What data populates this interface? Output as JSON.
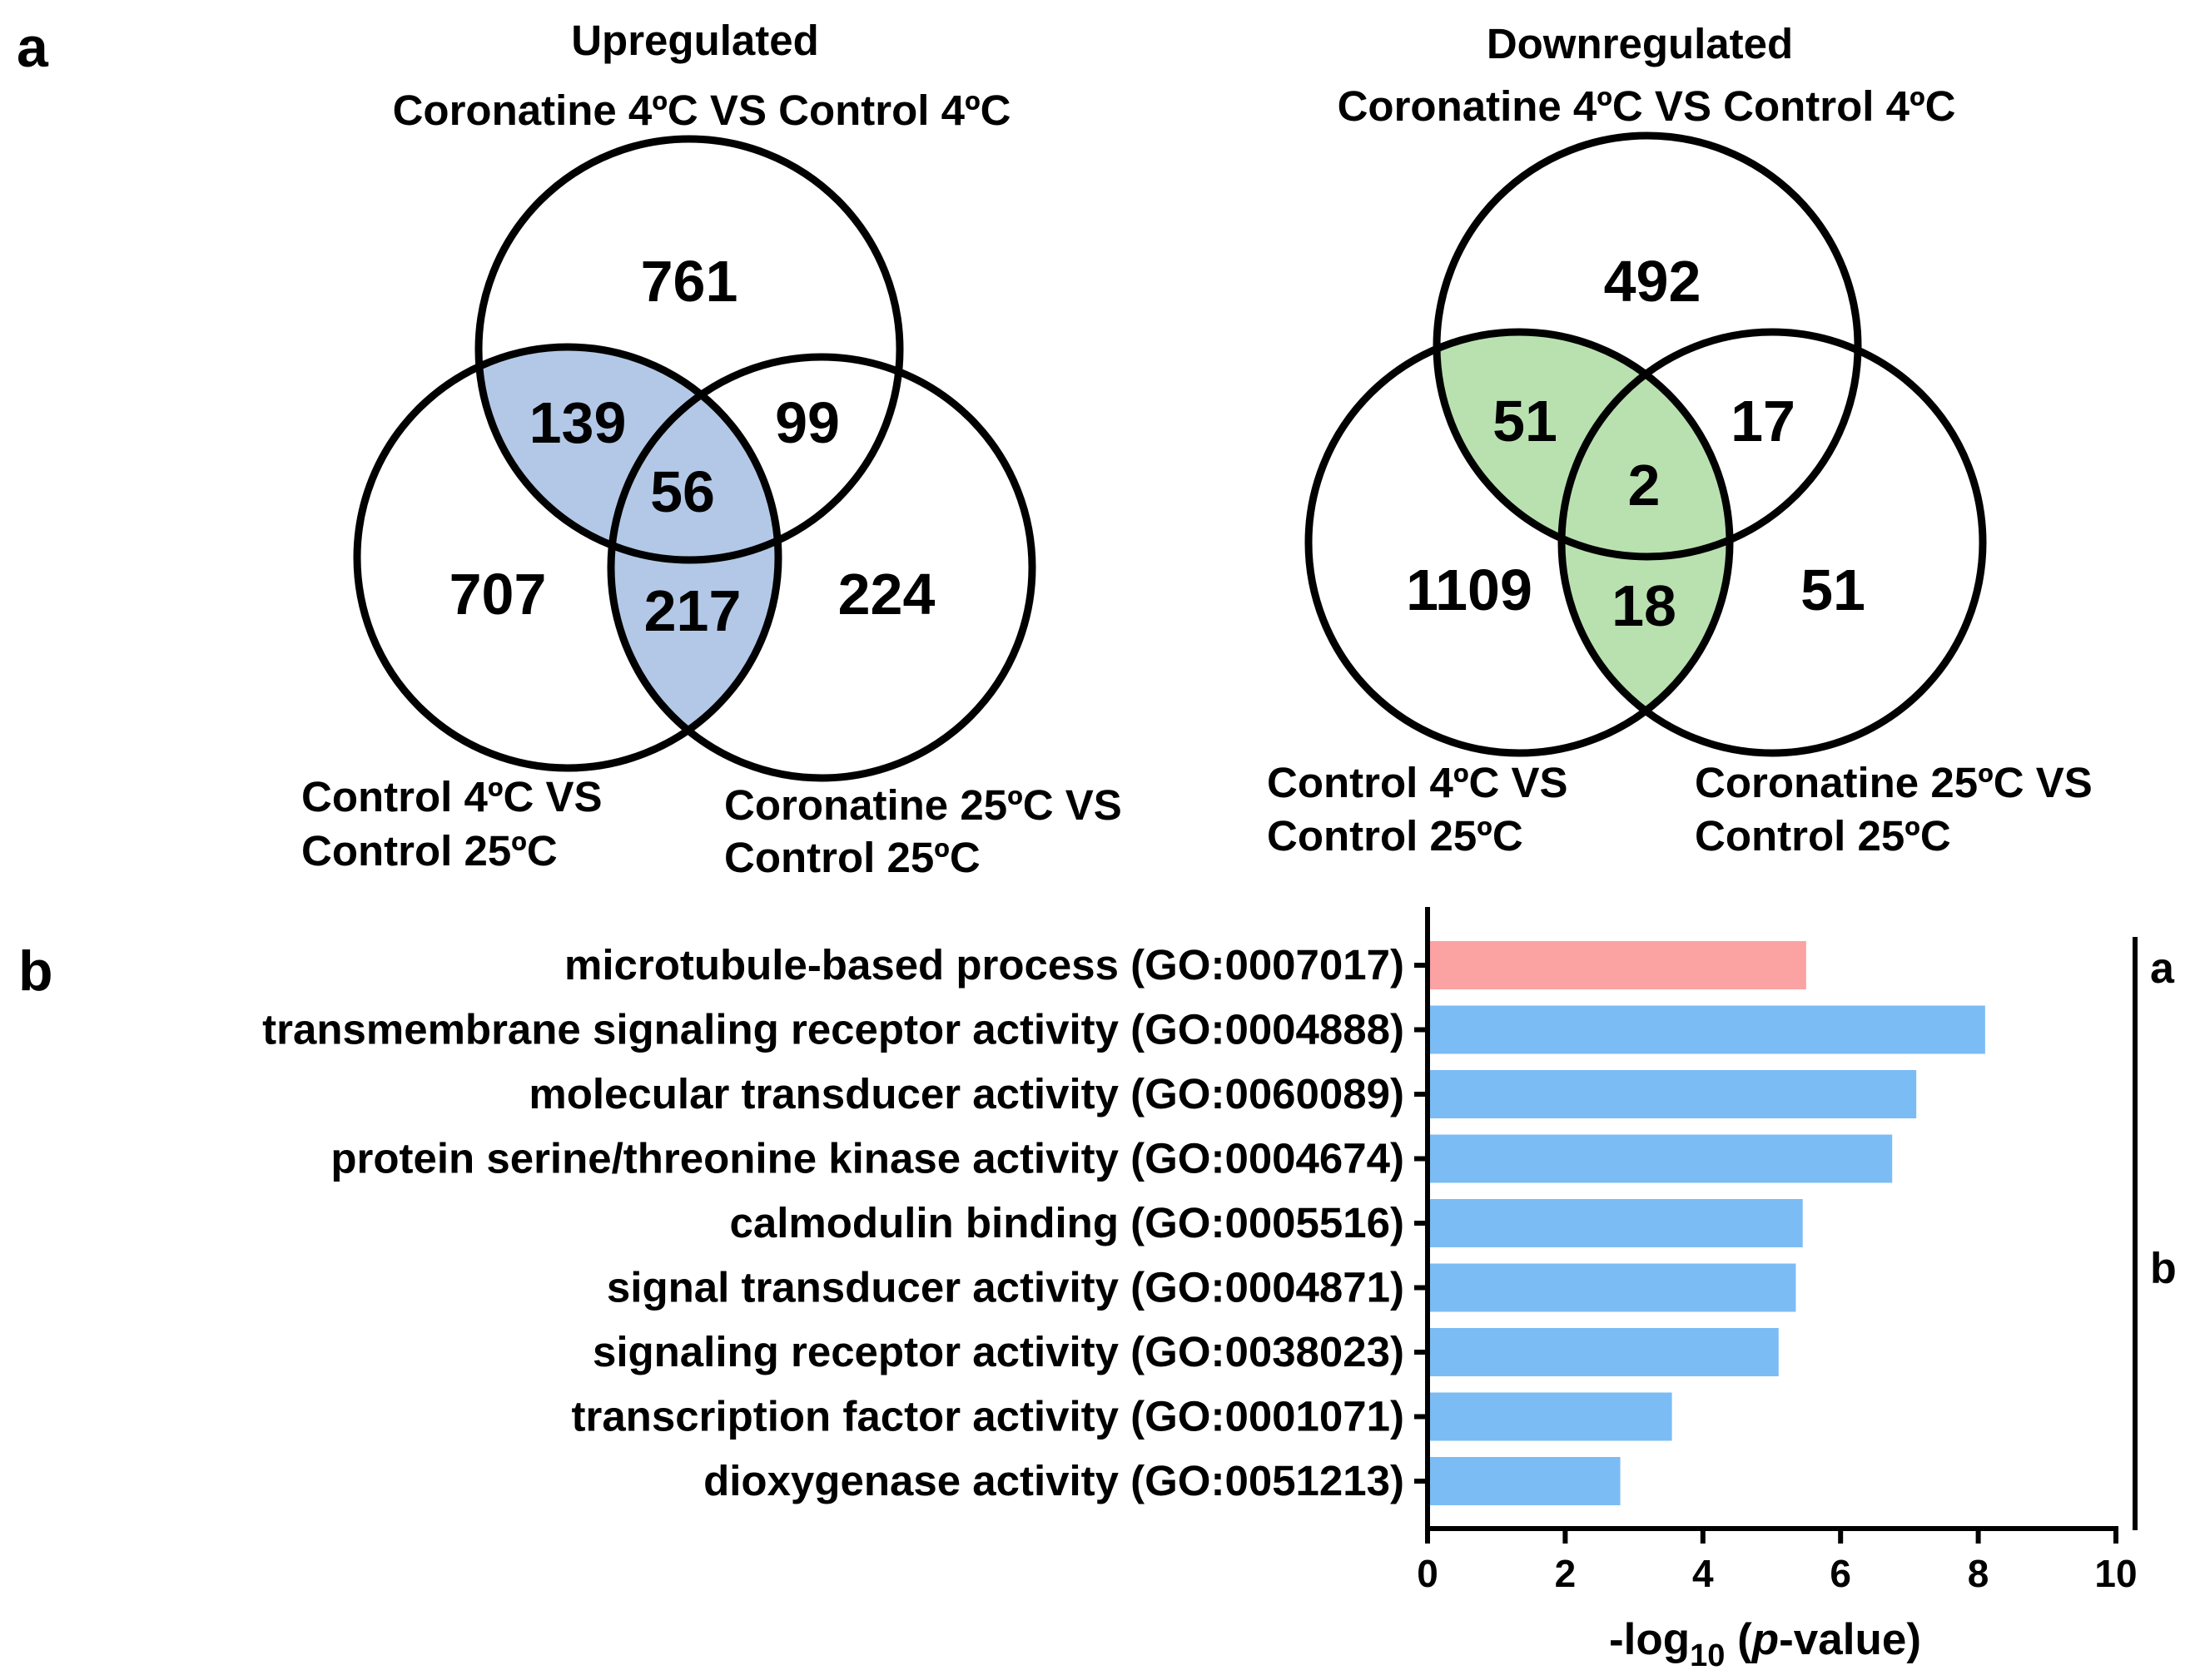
{
  "panel_labels": {
    "a": "a",
    "b": "b"
  },
  "venn": {
    "up": {
      "header": "Upregulated",
      "top_label": "Coronatine 4ºC VS Control 4ºC",
      "left_label_1": "Control 4ºC VS",
      "left_label_2": "Control 25ºC",
      "right_label_1": "Coronatine 25ºC VS",
      "right_label_2": "Control 25ºC",
      "counts": {
        "top_only": "761",
        "top_left": "139",
        "top_right": "99",
        "all": "56",
        "left_only": "707",
        "left_right": "217",
        "right_only": "224"
      },
      "highlight_color": "#b2c8e6"
    },
    "down": {
      "header": "Downregulated",
      "top_label": "Coronatine 4ºC VS Control 4ºC",
      "left_label_1": "Control 4ºC VS",
      "left_label_2": "Control 25ºC",
      "right_label_1": "Coronatine 25ºC VS",
      "right_label_2": "Control 25ºC",
      "counts": {
        "top_only": "492",
        "top_left": "51",
        "top_right": "17",
        "all": "2",
        "left_only": "1109",
        "left_right": "18",
        "right_only": "51"
      },
      "highlight_color": "#b9e1b0"
    }
  },
  "chart_data": {
    "type": "bar",
    "orientation": "horizontal",
    "categories": [
      "microtubule-based process (GO:0007017)",
      "transmembrane signaling receptor activity (GO:0004888)",
      "molecular transducer activity (GO:0060089)",
      "protein serine/threonine kinase activity (GO:0004674)",
      "calmodulin binding (GO:0005516)",
      "signal transducer activity (GO:0004871)",
      "signaling receptor activity (GO:0038023)",
      "transcription factor activity (GO:0001071)",
      "dioxygenase activity (GO:0051213)"
    ],
    "values": [
      5.5,
      8.1,
      7.1,
      6.75,
      5.45,
      5.35,
      5.1,
      3.55,
      2.8
    ],
    "groups": [
      "a",
      "b",
      "b",
      "b",
      "b",
      "b",
      "b",
      "b",
      "b"
    ],
    "group_colors": {
      "a": "#fba2a2",
      "b": "#7bbcf5"
    },
    "group_labels": [
      "a",
      "b"
    ],
    "xlabel_prefix": "-log",
    "xlabel_sub": "10",
    "xlabel_open": " (",
    "xlabel_italic": "p",
    "xlabel_rest": "-value)",
    "xlim": [
      0,
      10
    ],
    "xticks": [
      0,
      2,
      4,
      6,
      8,
      10
    ],
    "xtick_labels": [
      "0",
      "2",
      "4",
      "6",
      "8",
      "10"
    ]
  }
}
